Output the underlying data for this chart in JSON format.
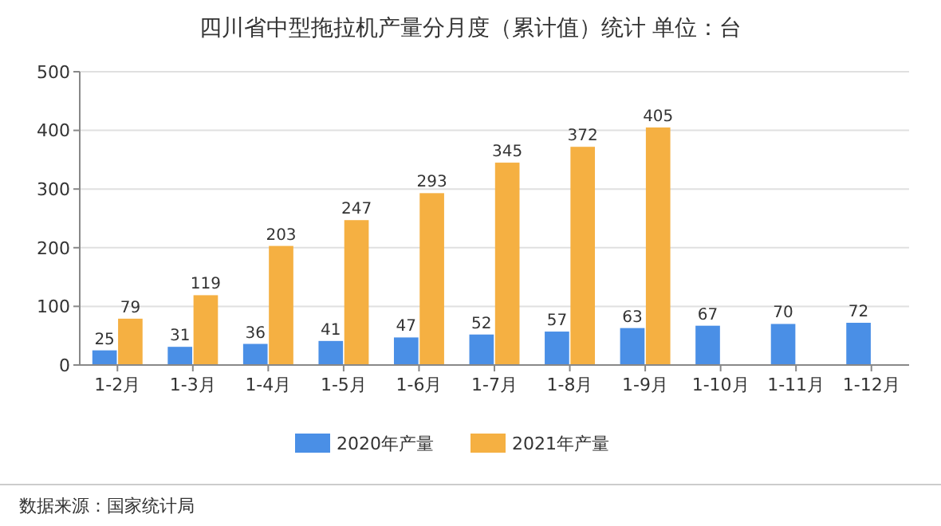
{
  "chart_data": {
    "type": "bar",
    "title": "四川省中型拖拉机产量分月度（累计值）统计  单位：台",
    "categories": [
      "1-2月",
      "1-3月",
      "1-4月",
      "1-5月",
      "1-6月",
      "1-7月",
      "1-8月",
      "1-9月",
      "1-10月",
      "1-11月",
      "1-12月"
    ],
    "series": [
      {
        "name": "2020年产量",
        "color": "#4a8fe6",
        "values": [
          25,
          31,
          36,
          41,
          47,
          52,
          57,
          63,
          67,
          70,
          72
        ]
      },
      {
        "name": "2021年产量",
        "color": "#f5b042",
        "values": [
          79,
          119,
          203,
          247,
          293,
          345,
          372,
          405,
          null,
          null,
          null
        ]
      }
    ],
    "ylim": [
      0,
      500
    ],
    "yticks": [
      0,
      100,
      200,
      300,
      400,
      500
    ],
    "grid": "y",
    "legend": "bottom",
    "data_labels": true,
    "annotations": [
      "数据来源：国家统计局"
    ]
  }
}
